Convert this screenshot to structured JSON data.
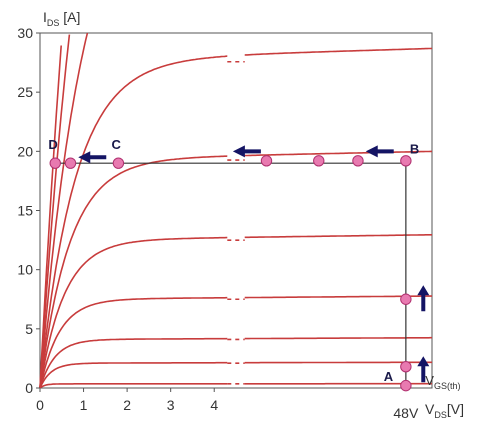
{
  "chart_data": {
    "type": "line",
    "title": "",
    "ylabel": {
      "main": "I",
      "sub": "DS",
      "unit": " [A]"
    },
    "xlabel": {
      "main": "V",
      "sub": "DS",
      "unit": "[V]"
    },
    "ylim": [
      0,
      30
    ],
    "yticks": [
      0,
      5,
      10,
      15,
      20,
      25,
      30
    ],
    "xticks": [
      0,
      1,
      2,
      3,
      4
    ],
    "x_extra_tick": {
      "value": 8.4,
      "label": "48V"
    },
    "axis_break_x": [
      4.3,
      4.7
    ],
    "x_max": 9.0,
    "grid": false,
    "colors": {
      "curves": "#c83c3c",
      "trajectory": "#333333",
      "markers": "#e87ab0",
      "marker_edge": "#b0306f",
      "arrows": "#141464"
    },
    "output_curves": [
      {
        "sat": 0.35
      },
      {
        "sat": 2.1
      },
      {
        "sat": 4.1
      },
      {
        "sat": 7.5
      },
      {
        "sat": 12.5
      },
      {
        "sat": 19.3
      },
      {
        "sat": 27.7
      },
      {
        "sat": 45
      },
      {
        "sat": 70
      },
      {
        "sat": 100
      }
    ],
    "trajectory": [
      {
        "x": 8.4,
        "y": 0
      },
      {
        "x": 8.4,
        "y": 19
      },
      {
        "x": 0.3,
        "y": 19
      }
    ],
    "markers": [
      {
        "x": 8.4,
        "y": 0.2
      },
      {
        "x": 8.4,
        "y": 1.8
      },
      {
        "x": 8.4,
        "y": 7.5
      },
      {
        "x": 8.4,
        "y": 19.2
      },
      {
        "x": 7.3,
        "y": 19.2
      },
      {
        "x": 6.4,
        "y": 19.2
      },
      {
        "x": 5.2,
        "y": 19.2
      },
      {
        "x": 1.8,
        "y": 19
      },
      {
        "x": 0.7,
        "y": 19
      },
      {
        "x": 0.35,
        "y": 19
      }
    ],
    "point_labels": [
      {
        "text": "A",
        "x": 8.0,
        "y": 0.6
      },
      {
        "text": "B",
        "x": 8.6,
        "y": 19.8
      },
      {
        "text": "C",
        "x": 1.75,
        "y": 20.2
      },
      {
        "text": "D",
        "x": 0.3,
        "y": 20.2
      }
    ],
    "gate_threshold_label": {
      "main": "V",
      "sub": "GS(th)",
      "x": 8.8,
      "y": 0.6
    },
    "arrows": [
      {
        "direction": "up",
        "x": 8.8,
        "y": 1.5
      },
      {
        "direction": "up",
        "x": 8.8,
        "y": 7.5
      },
      {
        "direction": "left",
        "x": 7.8,
        "y": 20.0
      },
      {
        "direction": "left",
        "x": 4.75,
        "y": 20.0
      },
      {
        "direction": "left",
        "x": 1.2,
        "y": 19.5
      }
    ]
  }
}
